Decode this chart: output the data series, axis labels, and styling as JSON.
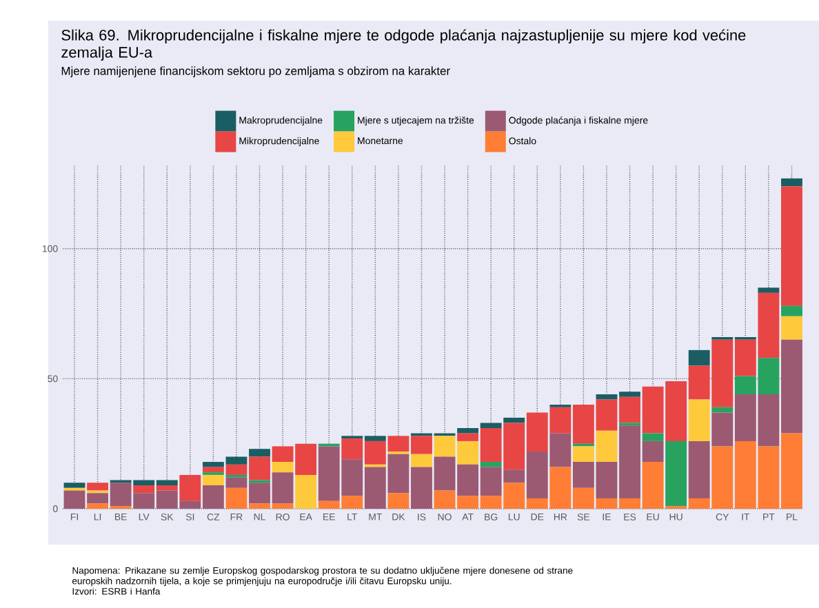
{
  "chart_data": {
    "type": "bar",
    "stacked": true,
    "title": "Slika 69. Mikroprudencijalne i fiskalne mjere te odgode plaćanja najzastupljenije su mjere kod većine zemalja EU-a",
    "subtitle": "Mjere namijenjene financijskom sektoru po zemljama s obzirom na karakter",
    "categories": [
      "FI",
      "LI",
      "BE",
      "LV",
      "SK",
      "SI",
      "CZ",
      "FR",
      "NL",
      "RO",
      "EA",
      "EE",
      "LT",
      "MT",
      "DK",
      "IS",
      "NO",
      "AT",
      "BG",
      "LU",
      "DE",
      "HR",
      "SE",
      "IE",
      "ES",
      "EU",
      "HU",
      null,
      "CY",
      "IT",
      "PT",
      "PL"
    ],
    "series": [
      {
        "name": "Ostalo",
        "color": "#ff7d35",
        "values": [
          0,
          2,
          1,
          0,
          0,
          0,
          0,
          8,
          2,
          2,
          0,
          3,
          5,
          0,
          6,
          0,
          7,
          5,
          5,
          10,
          4,
          16,
          8,
          4,
          4,
          18,
          1,
          4,
          24,
          26,
          24,
          29
        ]
      },
      {
        "name": "Odgode plaćanja i fiskalne mjere",
        "color": "#9b5a72",
        "values": [
          7,
          4,
          9,
          6,
          7,
          3,
          9,
          4,
          8,
          12,
          0,
          21,
          14,
          16,
          15,
          16,
          13,
          12,
          11,
          5,
          18,
          13,
          10,
          14,
          28,
          8,
          0,
          22,
          13,
          18,
          20,
          36
        ]
      },
      {
        "name": "Monetarne",
        "color": "#ffc93c",
        "values": [
          1,
          1,
          0,
          0,
          0,
          0,
          4,
          0,
          0,
          4,
          13,
          0,
          0,
          1,
          1,
          5,
          8,
          9,
          0,
          0,
          0,
          0,
          6,
          12,
          0,
          0,
          0,
          16,
          0,
          0,
          0,
          9
        ]
      },
      {
        "name": "Mjere s utjecajem na tržište",
        "color": "#27a35f",
        "values": [
          0,
          0,
          0,
          0,
          0,
          0,
          1,
          1,
          1,
          0,
          0,
          1,
          0,
          0,
          0,
          0,
          0,
          0,
          2,
          0,
          0,
          0,
          1,
          0,
          1,
          3,
          25,
          0,
          2,
          7,
          14,
          4
        ]
      },
      {
        "name": "Mikroprudencijalne",
        "color": "#e84545",
        "values": [
          0,
          3,
          0,
          3,
          2,
          10,
          2,
          4,
          9,
          6,
          12,
          0,
          8,
          9,
          6,
          7,
          0,
          3,
          13,
          18,
          15,
          10,
          15,
          12,
          10,
          18,
          23,
          13,
          26,
          14,
          25,
          46
        ]
      },
      {
        "name": "Makroprudencijalne",
        "color": "#1a5e63",
        "values": [
          2,
          0,
          1,
          2,
          2,
          0,
          2,
          3,
          3,
          0,
          0,
          0,
          1,
          2,
          0,
          1,
          1,
          2,
          2,
          2,
          0,
          1,
          0,
          2,
          2,
          0,
          0,
          6,
          1,
          1,
          2,
          3
        ]
      }
    ],
    "ylim": [
      0,
      132
    ],
    "yticks": [
      0,
      50,
      100
    ],
    "grid": true,
    "legend": "top",
    "annotations": [
      "Napomena: Prikazane su zemlje Europskog gospodarskog prostora te su dodatno uključene mjere donesene od strane europskih nadzornih tijela, a koje se primjenjuju na europodručje i/ili čitavu Europsku uniju.",
      "Izvori: ESRB i Hanfa"
    ]
  }
}
